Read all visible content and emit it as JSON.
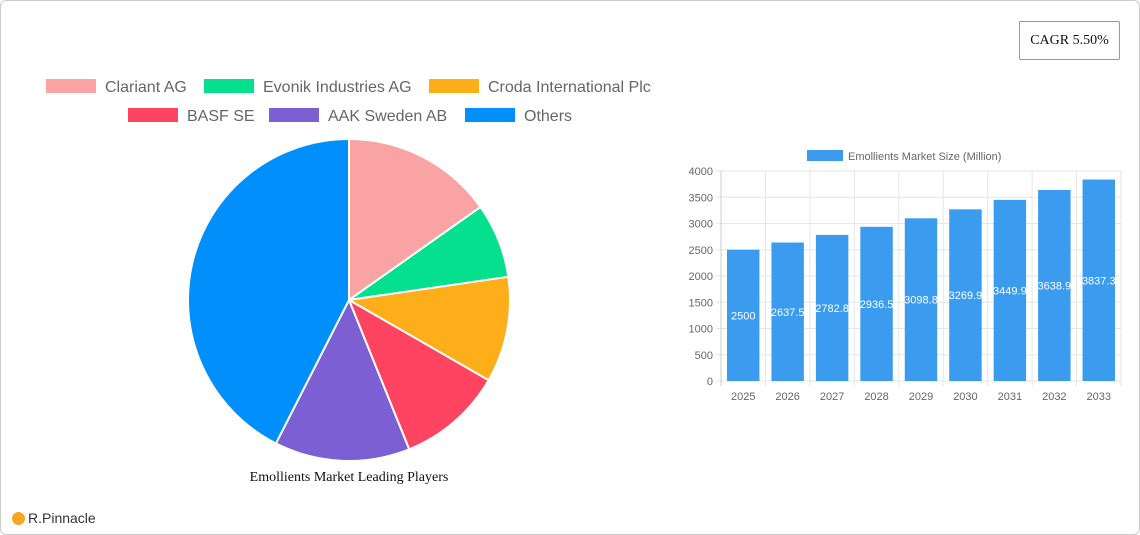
{
  "cagr": "CAGR 5.50%",
  "logo": "R.Pinnacle",
  "chart_data": [
    {
      "type": "pie",
      "title": "Emollients Market Leading Players",
      "legend_position": "top",
      "labels": [
        "Clariant AG",
        "Evonik Industries AG",
        "Croda International Plc",
        "BASF SE",
        "AAK Sweden AB",
        "Others"
      ],
      "values": [
        15.2,
        7.5,
        10.6,
        10.6,
        13.6,
        42.5
      ],
      "colors": [
        "#f9a3a4",
        "#05e08f",
        "#feae19",
        "#fe4460",
        "#7b5fd3",
        "#008ffb"
      ]
    },
    {
      "type": "bar",
      "legend": [
        "Emollients Market Size (Million)"
      ],
      "legend_position": "top",
      "categories": [
        "2025",
        "2026",
        "2027",
        "2028",
        "2029",
        "2030",
        "2031",
        "2032",
        "2033"
      ],
      "values": [
        2500,
        2637.5,
        2782.8,
        2936.5,
        3098.8,
        3269.9,
        3449.9,
        3638.9,
        3837.3
      ],
      "ylim": [
        0,
        4000
      ],
      "yticks": [
        0,
        500,
        1000,
        1500,
        2000,
        2500,
        3000,
        3500,
        4000
      ],
      "grid": true,
      "color": "#3a9bef"
    }
  ]
}
